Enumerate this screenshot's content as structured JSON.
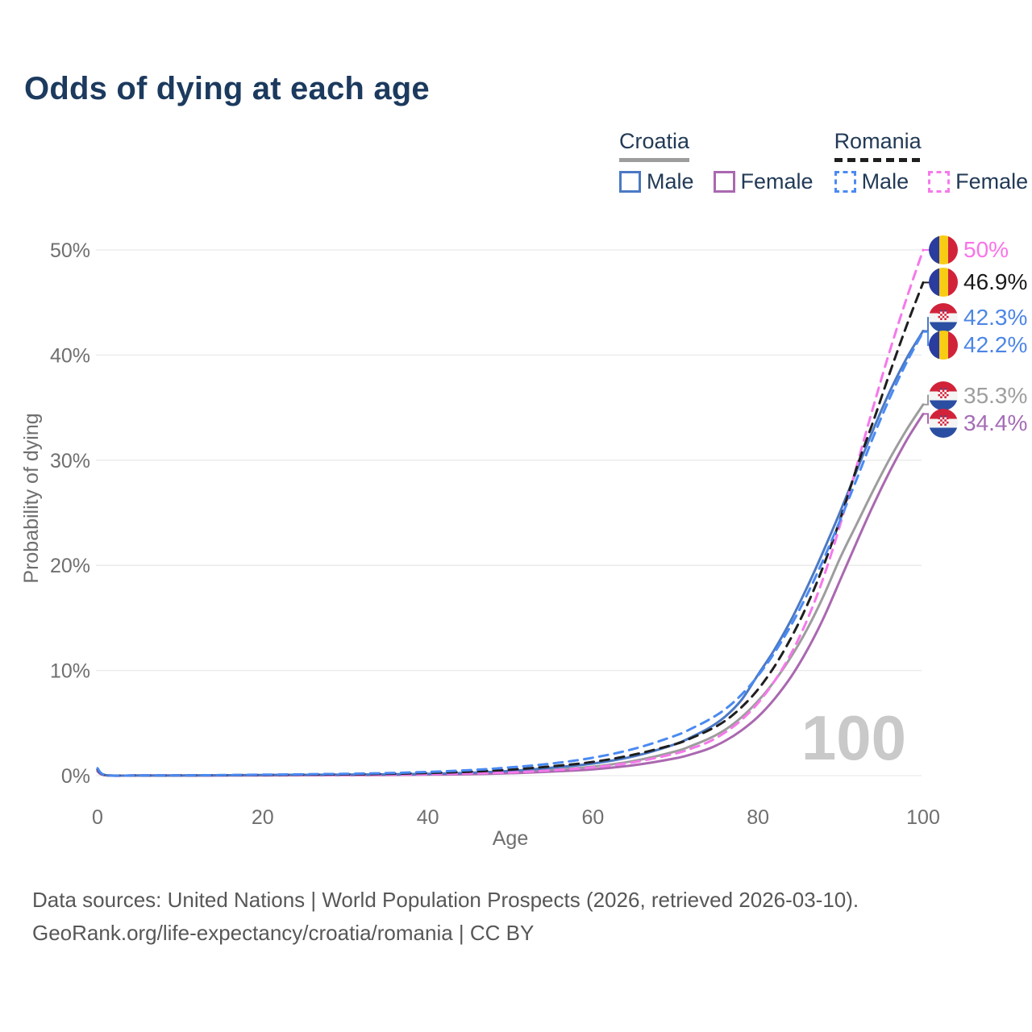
{
  "title": "Odds of dying at each age",
  "legend": {
    "groups": [
      {
        "name": "Croatia",
        "line_style": "solid",
        "underline_color": "#9d9d9d",
        "items": [
          {
            "label": "Male",
            "color": "#4b79c4",
            "dashed": false
          },
          {
            "label": "Female",
            "color": "#aa68b0",
            "dashed": false
          }
        ]
      },
      {
        "name": "Romania",
        "line_style": "dashed",
        "underline_color": "#1f1f1f",
        "items": [
          {
            "label": "Male",
            "color": "#4a8af2",
            "dashed": true
          },
          {
            "label": "Female",
            "color": "#f678ea",
            "dashed": true
          }
        ]
      }
    ]
  },
  "watermark_age": "100",
  "footer": {
    "line1": "Data sources: United Nations | World Population Prospects (2026, retrieved 2026-03-10).",
    "line2": "GeoRank.org/life-expectancy/croatia/romania | CC BY"
  },
  "chart_data": {
    "type": "line",
    "title": "Odds of dying at each age",
    "xlabel": "Age",
    "ylabel": "Probability of dying",
    "xlim": [
      0,
      100
    ],
    "ylim": [
      0,
      50
    ],
    "x_ticks": [
      0,
      20,
      40,
      60,
      80,
      100
    ],
    "y_ticks": [
      {
        "value": 0,
        "label": "0%"
      },
      {
        "value": 10,
        "label": "10%"
      },
      {
        "value": 20,
        "label": "20%"
      },
      {
        "value": 30,
        "label": "30%"
      },
      {
        "value": 40,
        "label": "40%"
      },
      {
        "value": 50,
        "label": "50%"
      }
    ],
    "grid": "horizontal",
    "legend_position": "top-right",
    "x": [
      0,
      1,
      5,
      10,
      15,
      20,
      25,
      30,
      35,
      40,
      45,
      50,
      55,
      60,
      65,
      70,
      72,
      74,
      76,
      78,
      80,
      82,
      84,
      86,
      88,
      90,
      92,
      94,
      96,
      98,
      100
    ],
    "series": [
      {
        "name": "Croatia Total",
        "country": "croatia",
        "sex": "total",
        "color": "#9d9d9d",
        "dashed": false,
        "end_label": "35.3%",
        "end_label_color": "#9e9e9e",
        "flag": "croatia",
        "values": [
          0.45,
          0.035,
          0.01,
          0.01,
          0.02,
          0.04,
          0.05,
          0.06,
          0.08,
          0.12,
          0.19,
          0.32,
          0.54,
          0.85,
          1.4,
          2.3,
          2.85,
          3.5,
          4.35,
          5.55,
          7.1,
          9.0,
          11.3,
          14.0,
          17.2,
          20.8,
          24.0,
          27.2,
          30.2,
          32.9,
          35.3
        ]
      },
      {
        "name": "Croatia Female",
        "country": "croatia",
        "sex": "female",
        "color": "#aa68b0",
        "dashed": false,
        "end_label": "34.4%",
        "end_label_color": "#a46cb5",
        "flag": "croatia",
        "values": [
          0.4,
          0.03,
          0.01,
          0.01,
          0.015,
          0.025,
          0.035,
          0.045,
          0.06,
          0.09,
          0.14,
          0.23,
          0.38,
          0.6,
          1.0,
          1.65,
          2.05,
          2.55,
          3.3,
          4.3,
          5.6,
          7.3,
          9.4,
          12.0,
          15.1,
          18.7,
          22.3,
          25.8,
          29.0,
          31.9,
          34.4
        ]
      },
      {
        "name": "Croatia Male",
        "country": "croatia",
        "sex": "male",
        "color": "#4b79c4",
        "dashed": false,
        "end_label": "42.3%",
        "end_label_color": "#4c86e6",
        "flag": "croatia",
        "values": [
          0.5,
          0.04,
          0.01,
          0.01,
          0.03,
          0.06,
          0.08,
          0.09,
          0.12,
          0.17,
          0.27,
          0.45,
          0.75,
          1.15,
          1.85,
          3.0,
          3.7,
          4.5,
          5.6,
          7.2,
          9.6,
          12.0,
          14.8,
          18.0,
          21.5,
          25.2,
          29.1,
          33.0,
          36.6,
          39.7,
          42.3
        ]
      },
      {
        "name": "Romania Female",
        "country": "romania",
        "sex": "female",
        "color": "#f678ea",
        "dashed": true,
        "end_label": "50%",
        "end_label_color": "#f973e8",
        "flag": "romania",
        "values": [
          0.55,
          0.04,
          0.012,
          0.012,
          0.025,
          0.04,
          0.05,
          0.07,
          0.095,
          0.14,
          0.21,
          0.3,
          0.5,
          0.78,
          1.28,
          2.1,
          2.6,
          3.2,
          4.1,
          5.3,
          6.9,
          9.0,
          11.6,
          14.9,
          19.0,
          24.0,
          29.6,
          35.2,
          40.5,
          45.4,
          50.0
        ]
      },
      {
        "name": "Romania Total",
        "country": "romania",
        "sex": "total",
        "color": "#1f1f1f",
        "dashed": true,
        "end_label": "46.9%",
        "end_label_color": "#1a1a1a",
        "flag": "romania",
        "values": [
          0.6,
          0.045,
          0.015,
          0.015,
          0.04,
          0.06,
          0.09,
          0.12,
          0.17,
          0.25,
          0.37,
          0.57,
          0.88,
          1.3,
          2.0,
          3.0,
          3.6,
          4.3,
          5.2,
          6.5,
          8.2,
          10.4,
          13.1,
          16.3,
          20.1,
          24.5,
          29.4,
          33.8,
          38.4,
          42.8,
          46.9
        ]
      },
      {
        "name": "Romania Male",
        "country": "romania",
        "sex": "male",
        "color": "#4a8af2",
        "dashed": true,
        "end_label": "42.2%",
        "end_label_color": "#4c86e6",
        "flag": "romania",
        "values": [
          0.7,
          0.05,
          0.02,
          0.02,
          0.05,
          0.09,
          0.13,
          0.17,
          0.24,
          0.35,
          0.52,
          0.78,
          1.15,
          1.7,
          2.55,
          3.8,
          4.5,
          5.3,
          6.3,
          7.7,
          9.5,
          11.7,
          14.3,
          17.3,
          20.7,
          24.4,
          28.3,
          32.3,
          36.0,
          39.3,
          42.2
        ]
      }
    ]
  }
}
